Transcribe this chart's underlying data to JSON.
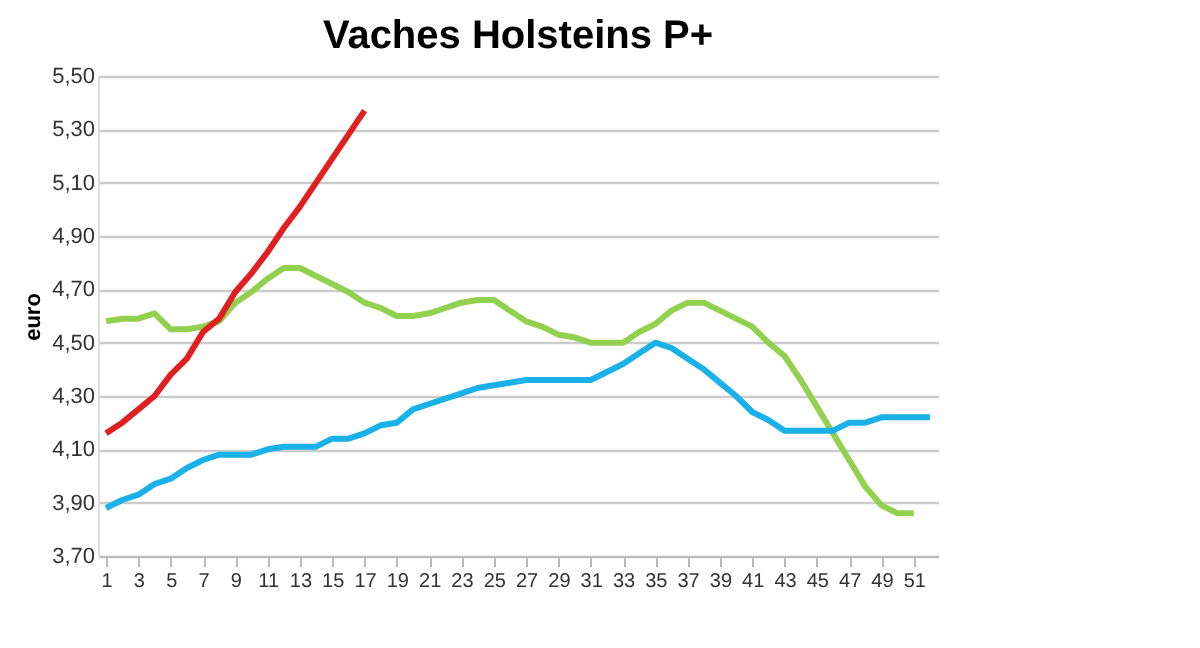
{
  "chart_data": {
    "type": "line",
    "title": "Vaches Holsteins P+",
    "ylabel": "euro",
    "x": [
      1,
      2,
      3,
      4,
      5,
      6,
      7,
      8,
      9,
      10,
      11,
      12,
      13,
      14,
      15,
      16,
      17,
      18,
      19,
      20,
      21,
      22,
      23,
      24,
      25,
      26,
      27,
      28,
      29,
      30,
      31,
      32,
      33,
      34,
      35,
      36,
      37,
      38,
      39,
      40,
      41,
      42,
      43,
      44,
      45,
      46,
      47,
      48,
      49,
      50,
      51,
      52
    ],
    "xlim": [
      0.5,
      52.5
    ],
    "xticks": [
      1,
      3,
      5,
      7,
      9,
      11,
      13,
      15,
      17,
      19,
      21,
      23,
      25,
      27,
      29,
      31,
      33,
      35,
      37,
      39,
      41,
      43,
      45,
      47,
      49,
      51
    ],
    "ylim": [
      3.7,
      5.5
    ],
    "yticks": [
      {
        "value": 3.7,
        "label": "3,70"
      },
      {
        "value": 3.9,
        "label": "3,90"
      },
      {
        "value": 4.1,
        "label": "4,10"
      },
      {
        "value": 4.3,
        "label": "4,30"
      },
      {
        "value": 4.5,
        "label": "4,50"
      },
      {
        "value": 4.7,
        "label": "4,70"
      },
      {
        "value": 4.9,
        "label": "4,90"
      },
      {
        "value": 5.1,
        "label": "5,10"
      },
      {
        "value": 5.3,
        "label": "5,30"
      },
      {
        "value": 5.5,
        "label": "5,50"
      }
    ],
    "grid": "y",
    "legend": false,
    "marker": "none",
    "line_style": "solid",
    "series": [
      {
        "color": "#92d050",
        "values": [
          4.58,
          4.59,
          4.59,
          4.61,
          4.55,
          4.55,
          4.56,
          4.58,
          4.65,
          4.69,
          4.74,
          4.78,
          4.78,
          4.75,
          4.72,
          4.69,
          4.65,
          4.63,
          4.6,
          4.6,
          4.61,
          4.63,
          4.65,
          4.66,
          4.66,
          4.62,
          4.58,
          4.56,
          4.53,
          4.52,
          4.5,
          4.5,
          4.5,
          4.54,
          4.57,
          4.62,
          4.65,
          4.65,
          4.62,
          4.59,
          4.56,
          4.5,
          4.45,
          4.36,
          4.26,
          4.16,
          4.06,
          3.96,
          3.89,
          3.86,
          3.86,
          null
        ]
      },
      {
        "color": "#1ab0e8",
        "values": [
          3.88,
          3.91,
          3.93,
          3.97,
          3.99,
          4.03,
          4.06,
          4.08,
          4.08,
          4.08,
          4.1,
          4.11,
          4.11,
          4.11,
          4.14,
          4.14,
          4.16,
          4.19,
          4.2,
          4.25,
          4.27,
          4.29,
          4.31,
          4.33,
          4.34,
          4.35,
          4.36,
          4.36,
          4.36,
          4.36,
          4.36,
          4.39,
          4.42,
          4.46,
          4.5,
          4.48,
          4.44,
          4.4,
          4.35,
          4.3,
          4.24,
          4.21,
          4.17,
          4.17,
          4.17,
          4.17,
          4.2,
          4.2,
          4.22,
          4.22,
          4.22,
          4.22
        ]
      },
      {
        "color": "#e02020",
        "values": [
          4.16,
          4.2,
          4.25,
          4.3,
          4.38,
          4.44,
          4.54,
          4.59,
          4.69,
          4.76,
          4.84,
          4.93,
          5.01,
          5.1,
          5.19,
          5.28,
          5.37,
          null,
          null,
          null,
          null,
          null,
          null,
          null,
          null,
          null,
          null,
          null,
          null,
          null,
          null,
          null,
          null,
          null,
          null,
          null,
          null,
          null,
          null,
          null,
          null,
          null,
          null,
          null,
          null,
          null,
          null,
          null,
          null,
          null,
          null,
          null
        ]
      }
    ]
  }
}
